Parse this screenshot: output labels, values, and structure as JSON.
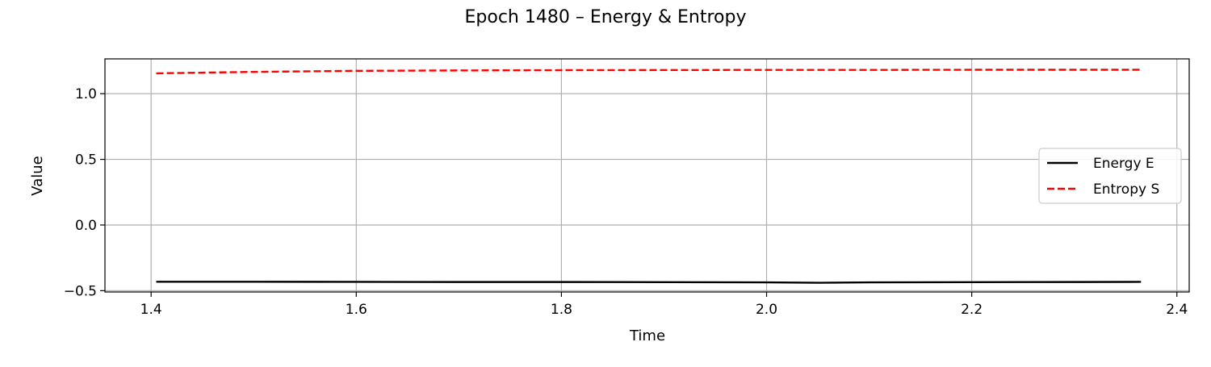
{
  "chart_data": {
    "type": "line",
    "title": "Epoch 1480 – Energy & Entropy",
    "xlabel": "Time",
    "ylabel": "Value",
    "xlim": [
      1.355,
      2.412
    ],
    "ylim": [
      -0.51,
      1.265
    ],
    "xticks": [
      1.4,
      1.6,
      1.8,
      2.0,
      2.2,
      2.4
    ],
    "xtick_labels": [
      "1.4",
      "1.6",
      "1.8",
      "2.0",
      "2.2",
      "2.4"
    ],
    "yticks": [
      -0.5,
      0.0,
      0.5,
      1.0
    ],
    "ytick_labels": [
      "−0.5",
      "0.0",
      "0.5",
      "1.0"
    ],
    "grid": true,
    "legend_position": "center-right",
    "series": [
      {
        "name": "Energy E",
        "color": "#000000",
        "style": "solid",
        "x": [
          1.405,
          1.5,
          1.6,
          1.7,
          1.8,
          1.9,
          2.0,
          2.05,
          2.1,
          2.2,
          2.3,
          2.365
        ],
        "y": [
          -0.432,
          -0.432,
          -0.433,
          -0.434,
          -0.434,
          -0.435,
          -0.437,
          -0.44,
          -0.437,
          -0.435,
          -0.434,
          -0.433
        ]
      },
      {
        "name": "Entropy S",
        "color": "#ff0000",
        "style": "dashed",
        "x": [
          1.405,
          1.5,
          1.6,
          1.7,
          1.8,
          1.9,
          2.0,
          2.1,
          2.2,
          2.3,
          2.365
        ],
        "y": [
          1.155,
          1.166,
          1.174,
          1.177,
          1.179,
          1.18,
          1.181,
          1.181,
          1.182,
          1.182,
          1.182
        ]
      }
    ]
  }
}
